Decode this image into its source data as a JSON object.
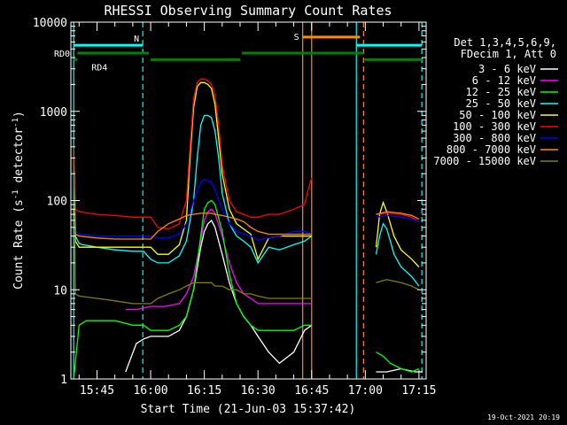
{
  "chart_data": {
    "type": "line",
    "title": "RHESSI Observing Summary Count Rates",
    "xlabel": "Start Time (21-Jun-03 15:37:42)",
    "ylabel_main": "Count Rate (s",
    "ylabel_sup1": "-1",
    "ylabel_mid": " detector",
    "ylabel_sup2": "-1",
    "ylabel_end": ")",
    "yscale": "log",
    "ylim": [
      1,
      10000
    ],
    "xlim_minutes": [
      37.7,
      137
    ],
    "x_ticks": [
      {
        "value": 45,
        "label": "15:45"
      },
      {
        "value": 60,
        "label": "16:00"
      },
      {
        "value": 75,
        "label": "16:15"
      },
      {
        "value": 90,
        "label": "16:30"
      },
      {
        "value": 105,
        "label": "16:45"
      },
      {
        "value": 120,
        "label": "17:00"
      },
      {
        "value": 135,
        "label": "17:15"
      }
    ],
    "y_ticks": [
      {
        "value": 1,
        "label": "1"
      },
      {
        "value": 10,
        "label": "10"
      },
      {
        "value": 100,
        "label": "100"
      },
      {
        "value": 1000,
        "label": "1000"
      },
      {
        "value": 10000,
        "label": "10000"
      }
    ],
    "legend_header": [
      "Det 1,3,4,5,6,9,",
      "FDecim 1, Att 0"
    ],
    "legend_placement": "right",
    "series": [
      {
        "name": "3 - 6 keV",
        "color": "#ffffff",
        "segments": [
          {
            "x": [
              53,
              56,
              58,
              60,
              62,
              65,
              68,
              70,
              72,
              74,
              75,
              76,
              77,
              78,
              80,
              82,
              84,
              86,
              88,
              90,
              93,
              96,
              100,
              103,
              105
            ],
            "y": [
              1.2,
              2.5,
              2.8,
              3,
              3,
              3,
              3.5,
              5,
              10,
              30,
              45,
              55,
              60,
              50,
              25,
              12,
              7,
              5,
              4,
              3,
              2,
              1.5,
              2,
              3.5,
              4
            ]
          },
          {
            "x": [
              123,
              126,
              130,
              134,
              136
            ],
            "y": [
              1.2,
              1.2,
              1.3,
              1.2,
              1.2
            ]
          }
        ]
      },
      {
        "name": "6 - 12 keV",
        "color": "#ff00ff",
        "segments": [
          {
            "x": [
              53,
              56,
              60,
              64,
              68,
              70,
              72,
              74,
              75,
              76,
              77,
              78,
              80,
              82,
              84,
              86,
              88,
              90,
              93,
              96,
              100,
              103,
              105
            ],
            "y": [
              6,
              6,
              6.5,
              6.5,
              7,
              9,
              14,
              35,
              60,
              75,
              80,
              72,
              40,
              20,
              12,
              9,
              8,
              7,
              7,
              7,
              7,
              7,
              7
            ]
          }
        ]
      },
      {
        "name": "12 - 25 keV",
        "color": "#00ff00",
        "segments": [
          {
            "x": [
              38.5,
              40,
              42,
              45,
              50,
              55,
              58,
              60,
              62,
              65,
              68,
              70,
              72,
              74,
              75,
              76,
              77,
              78,
              80,
              82,
              84,
              86,
              88,
              90,
              93,
              96,
              100,
              103,
              105
            ],
            "y": [
              1,
              4,
              4.5,
              4.5,
              4.5,
              4,
              4,
              3.5,
              3.5,
              3.5,
              4,
              5,
              10,
              40,
              80,
              95,
              100,
              90,
              45,
              15,
              7,
              5,
              4,
              3.5,
              3.5,
              3.5,
              3.5,
              4,
              4
            ]
          },
          {
            "x": [
              123,
              125,
              127,
              130,
              133,
              135
            ],
            "y": [
              2,
              1.8,
              1.5,
              1.3,
              1.2,
              1.3
            ]
          }
        ]
      },
      {
        "name": "25 - 50 keV",
        "color": "#00ffff",
        "segments": [
          {
            "x": [
              38.5,
              39,
              40,
              41,
              45,
              50,
              55,
              58,
              60,
              62,
              65,
              68,
              70,
              72,
              73,
              74,
              75,
              76,
              77,
              78,
              79,
              80,
              82,
              84,
              86,
              88,
              90,
              93,
              96,
              100,
              103,
              105
            ],
            "y": [
              300,
              40,
              33,
              32,
              30,
              28,
              27,
              27,
              22,
              20,
              20,
              24,
              35,
              100,
              300,
              700,
              900,
              900,
              850,
              600,
              300,
              120,
              55,
              40,
              35,
              30,
              20,
              30,
              28,
              32,
              35,
              40
            ]
          },
          {
            "x": [
              123,
              124,
              125,
              126,
              127,
              128,
              130,
              133,
              135
            ],
            "y": [
              25,
              40,
              55,
              48,
              35,
              25,
              18,
              14,
              11
            ]
          }
        ]
      },
      {
        "name": "50 - 100 keV",
        "color": "#ffff00",
        "segments": [
          {
            "x": [
              38.5,
              39,
              40,
              45,
              50,
              55,
              58,
              60,
              62,
              65,
              68,
              70,
              71,
              72,
              73,
              74,
              75,
              76,
              77,
              78,
              79,
              80,
              82,
              84,
              86,
              88,
              90,
              93,
              96,
              100,
              103,
              105
            ],
            "y": [
              80,
              35,
              30,
              30,
              30,
              30,
              30,
              30,
              25,
              25,
              32,
              60,
              300,
              1100,
              1900,
              2100,
              2100,
              2000,
              1800,
              1200,
              500,
              200,
              80,
              55,
              48,
              42,
              22,
              38,
              40,
              40,
              40,
              40
            ]
          },
          {
            "x": [
              123,
              124,
              125,
              126,
              127,
              128,
              130,
              133,
              135
            ],
            "y": [
              30,
              70,
              95,
              75,
              55,
              40,
              28,
              22,
              18
            ]
          }
        ]
      },
      {
        "name": "100 - 300 keV",
        "color": "#ff0000",
        "segments": [
          {
            "x": [
              38.5,
              39,
              40,
              45,
              50,
              55,
              58,
              60,
              62,
              65,
              68,
              70,
              71,
              72,
              73,
              74,
              75,
              76,
              77,
              78,
              79,
              80,
              82,
              84,
              86,
              88,
              90,
              93,
              96,
              100,
              103,
              104,
              105
            ],
            "y": [
              400,
              80,
              75,
              70,
              68,
              65,
              65,
              65,
              50,
              48,
              55,
              100,
              400,
              1400,
              2100,
              2300,
              2300,
              2200,
              2000,
              1500,
              700,
              250,
              100,
              75,
              70,
              65,
              65,
              70,
              70,
              80,
              90,
              130,
              180
            ]
          },
          {
            "x": [
              123,
              126,
              130,
              133,
              135
            ],
            "y": [
              70,
              72,
              70,
              65,
              58
            ]
          }
        ]
      },
      {
        "name": "300 - 800 keV",
        "color": "#0000ff",
        "segments": [
          {
            "x": [
              38.5,
              39,
              40,
              45,
              50,
              55,
              58,
              60,
              62,
              65,
              68,
              70,
              72,
              74,
              75,
              76,
              77,
              78,
              80,
              82,
              84,
              86,
              88,
              90,
              93,
              96,
              100,
              103,
              105
            ],
            "y": [
              300,
              45,
              42,
              40,
              40,
              40,
              40,
              40,
              38,
              38,
              42,
              55,
              100,
              160,
              170,
              168,
              160,
              130,
              80,
              55,
              45,
              42,
              40,
              36,
              38,
              40,
              45,
              45,
              42
            ]
          },
          {
            "x": [
              123,
              126,
              130,
              133,
              135
            ],
            "y": [
              65,
              68,
              65,
              62,
              58
            ]
          }
        ]
      },
      {
        "name": "800 - 7000 keV",
        "color": "#ff8c00",
        "segments": [
          {
            "x": [
              38.5,
              39,
              40,
              45,
              50,
              55,
              58,
              60,
              62,
              65,
              68,
              70,
              72,
              74,
              75,
              76,
              77,
              78,
              80,
              82,
              84,
              86,
              88,
              90,
              93,
              96,
              100,
              103,
              105
            ],
            "y": [
              300,
              42,
              40,
              38,
              37,
              37,
              37,
              37,
              45,
              55,
              62,
              68,
              70,
              72,
              72,
              72,
              72,
              70,
              68,
              65,
              62,
              58,
              50,
              45,
              42,
              42,
              42,
              42,
              42
            ]
          },
          {
            "x": [
              123,
              126,
              130,
              133,
              135
            ],
            "y": [
              70,
              75,
              72,
              68,
              62
            ]
          }
        ]
      },
      {
        "name": "7000 - 15000 keV",
        "color": "#808000",
        "segments": [
          {
            "x": [
              38.5,
              39,
              40,
              45,
              50,
              55,
              58,
              60,
              62,
              65,
              68,
              70,
              72,
              74,
              75,
              76,
              77,
              78,
              80,
              82,
              84,
              86,
              88,
              90,
              93,
              96,
              100,
              103,
              105
            ],
            "y": [
              400,
              9,
              8.5,
              8,
              7.5,
              7,
              7,
              7,
              8,
              9,
              10,
              11,
              12,
              12,
              12,
              12,
              12,
              11,
              11,
              10,
              10,
              9,
              9,
              8.5,
              8,
              8,
              8,
              8,
              8
            ]
          },
          {
            "x": [
              123,
              126,
              130,
              133,
              135
            ],
            "y": [
              12,
              13,
              12,
              11,
              10
            ]
          }
        ]
      }
    ],
    "vlines": [
      {
        "x": 38.5,
        "color": "#00ffff",
        "style": "solid"
      },
      {
        "x": 57.8,
        "color": "#00ffff",
        "style": "dashed"
      },
      {
        "x": 102.5,
        "color": "#ff8c00",
        "style": "solid"
      },
      {
        "x": 105,
        "color": "#ff8c00",
        "style": "solid"
      },
      {
        "x": 117.5,
        "color": "#00ffff",
        "style": "solid"
      },
      {
        "x": 119.5,
        "color": "#ff8c00",
        "style": "dashed"
      },
      {
        "x": 135.8,
        "color": "#00ffff",
        "style": "dashed"
      }
    ],
    "hbars": [
      {
        "x0": 38.5,
        "x1": 57.8,
        "y": 5500,
        "color": "#00ffff",
        "label": "N"
      },
      {
        "x0": 117.5,
        "x1": 135.8,
        "y": 5500,
        "color": "#00ffff",
        "label": ""
      },
      {
        "x0": 102.5,
        "x1": 118.5,
        "y": 6800,
        "color": "#ff8c00",
        "label": "S"
      },
      {
        "x0": 39.5,
        "x1": 59.5,
        "y": 4500,
        "color": "#008000",
        "label": "RD0"
      },
      {
        "x0": 38.5,
        "x1": 39.5,
        "y": 3800,
        "color": "#008000",
        "label": "RD4"
      },
      {
        "x0": 60,
        "x1": 85,
        "y": 3800,
        "color": "#008000",
        "label": ""
      },
      {
        "x0": 85.5,
        "x1": 119.5,
        "y": 4500,
        "color": "#008000",
        "label": ""
      },
      {
        "x0": 119.8,
        "x1": 135.8,
        "y": 3800,
        "color": "#008000",
        "label": ""
      }
    ],
    "timestamp": "19-Oct-2021 20:19"
  }
}
